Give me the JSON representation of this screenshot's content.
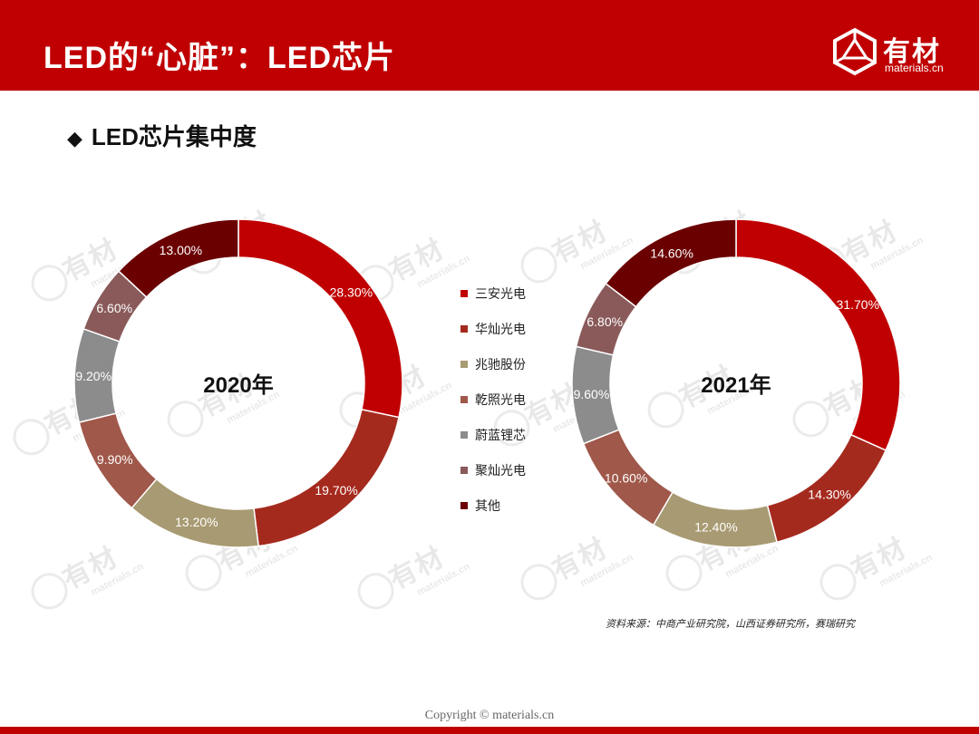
{
  "header": {
    "title": "LED的“心脏”：LED芯片",
    "logo_text": "有材",
    "logo_sub": "materials.cn"
  },
  "section": {
    "bullet": "◆",
    "title": "LED芯片集中度"
  },
  "watermark": {
    "text": "有材",
    "sub": "materials.cn"
  },
  "chart_data": [
    {
      "type": "pie",
      "style": "donut",
      "center_label": "2020年",
      "categories": [
        "三安光电",
        "华灿光电",
        "兆驰股份",
        "乾照光电",
        "蔚蓝锂芯",
        "聚灿光电",
        "其他"
      ],
      "values": [
        28.3,
        19.7,
        13.2,
        9.9,
        9.2,
        6.6,
        13.0
      ],
      "labels": [
        "28.30%",
        "19.70%",
        "13.20%",
        "9.90%",
        "9.20%",
        "6.60%",
        "13.00%"
      ],
      "legend_position": "right"
    },
    {
      "type": "pie",
      "style": "donut",
      "center_label": "2021年",
      "categories": [
        "三安光电",
        "华灿光电",
        "兆驰股份",
        "乾照光电",
        "蔚蓝锂芯",
        "聚灿光电",
        "其他"
      ],
      "values": [
        31.7,
        14.3,
        12.4,
        10.6,
        9.6,
        6.8,
        14.6
      ],
      "labels": [
        "31.70%",
        "14.30%",
        "12.40%",
        "10.60%",
        "9.60%",
        "6.80%",
        "14.60%"
      ],
      "legend_position": "left"
    }
  ],
  "legend": {
    "items": [
      "三安光电",
      "华灿光电",
      "兆驰股份",
      "乾照光电",
      "蔚蓝锂芯",
      "聚灿光电",
      "其他"
    ]
  },
  "colors": [
    "#c00000",
    "#a52a1e",
    "#a89a72",
    "#a0584a",
    "#8c8c8c",
    "#8a5a5a",
    "#6b0000"
  ],
  "source": "资料来源：中商产业研究院，山西证券研究所，赛瑞研究",
  "copyright": "Copyright © materials.cn"
}
